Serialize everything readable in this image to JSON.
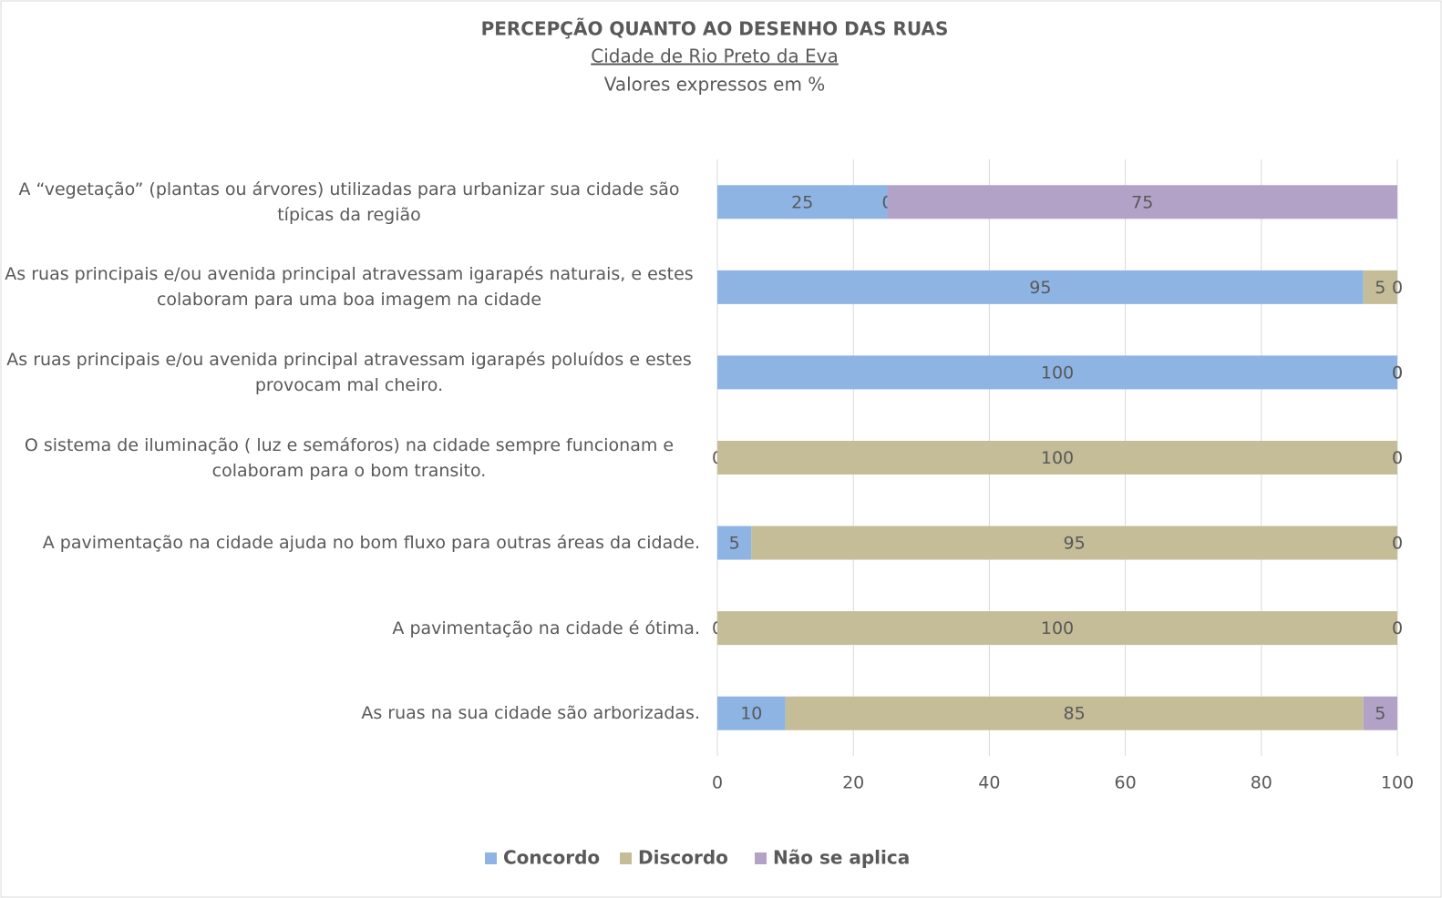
{
  "chart_data": {
    "type": "stacked_barh",
    "title": "PERCEPÇÃO QUANTO AO DESENHO DAS RUAS",
    "subtitle": "Cidade de Rio Preto da Eva",
    "note": "Valores expressos em  %",
    "categories": [
      "A “vegetação” (plantas ou árvores) utilizadas para urbanizar sua cidade são típicas da região",
      "As ruas principais e/ou avenida principal atravessam igarapés naturais, e estes colaboram para uma boa imagem na cidade",
      "As ruas principais e/ou avenida principal atravessam igarapés poluídos e estes provocam mal cheiro.",
      "O sistema de iluminação ( luz e semáforos) na cidade sempre funcionam e colaboram para o bom transito.",
      "A pavimentação na cidade ajuda no bom fluxo para outras áreas da cidade.",
      "A pavimentação na cidade é ótima.",
      "As ruas na sua cidade são arborizadas."
    ],
    "series": [
      {
        "name": "Concordo",
        "color": "#8eb4e3",
        "values": [
          25,
          95,
          100,
          0,
          5,
          0,
          10
        ]
      },
      {
        "name": "Discordo",
        "color": "#c4bd97",
        "values": [
          0,
          5,
          0,
          100,
          95,
          100,
          85
        ]
      },
      {
        "name": "Não se aplica",
        "color": "#b3a2c7",
        "values": [
          75,
          0,
          0,
          0,
          0,
          0,
          5
        ]
      }
    ],
    "xlim": [
      0,
      100
    ],
    "xticks": [
      0,
      20,
      40,
      60,
      80,
      100
    ],
    "grid": true,
    "legend": "bottom"
  }
}
